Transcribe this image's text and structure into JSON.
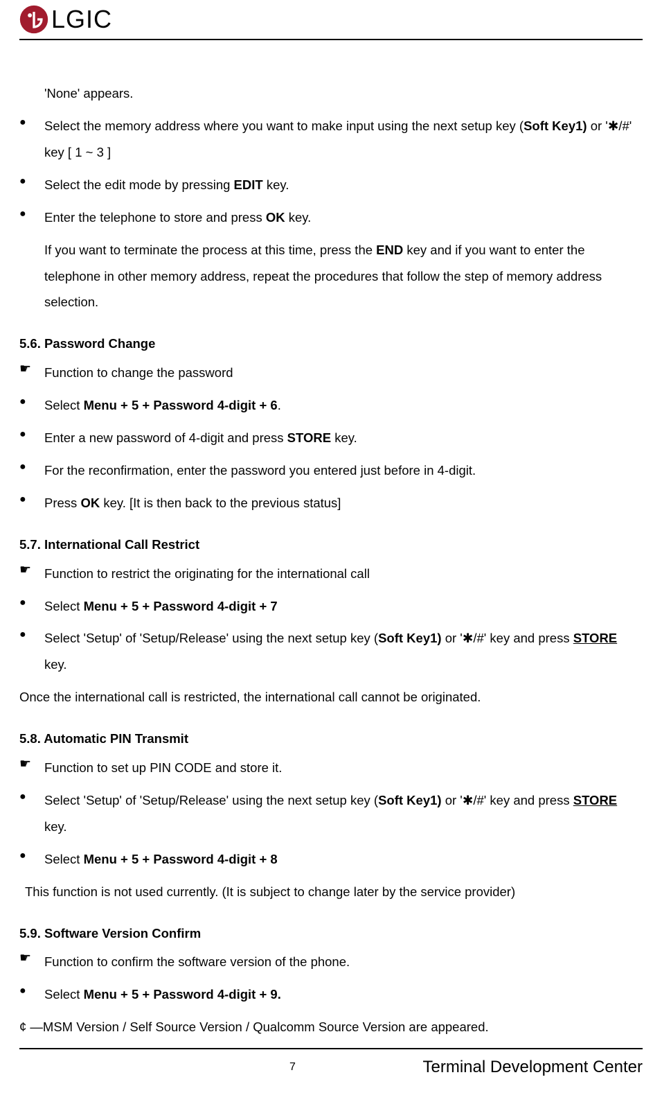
{
  "brand": {
    "text": "LGIC",
    "logo_ring_color": "#a11c2e",
    "logo_face_color": "#ffffff"
  },
  "top_continuation": "'None' appears.",
  "top_bullets": [
    {
      "html": "Select the memory address where you want to make input using the next setup key (<b>Soft Key1)</b> or '✱/#' key [ 1 ~ 3 ]"
    },
    {
      "html": "Select the edit mode by pressing <b>EDIT</b> key."
    },
    {
      "html": "Enter the telephone to store and press <b>OK</b> key."
    }
  ],
  "top_trailing": "If you want to terminate the process at this time, press the <b>END</b> key and if you want to enter the telephone in other memory address, repeat the procedures that follow the step of memory address selection.",
  "s56": {
    "heading": "5.6. Password Change",
    "pointer": "Function to change the password",
    "bullets": [
      {
        "html": "Select <b>Menu + 5 + Password 4-digit + 6</b>."
      },
      {
        "html": "Enter a new password of 4-digit and press <b>STORE</b> key."
      },
      {
        "html": "For the reconfirmation, enter the password you entered just before in 4-digit."
      },
      {
        "html": "Press <b>OK</b> key. [It is then back to the previous status]"
      }
    ]
  },
  "s57": {
    "heading": "5.7. International Call Restrict",
    "pointer": "Function to restrict the originating for the international call",
    "bullets": [
      {
        "html": "Select <b>Menu + 5 + Password 4-digit + 7</b>"
      },
      {
        "html": "Select 'Setup' of 'Setup/Release' using the next setup key (<b>Soft Key1)</b> or '✱/#' key and press <b><span class=\"u\">STORE</span></b> key."
      }
    ],
    "note": "Once the international call is restricted, the international call cannot be originated."
  },
  "s58": {
    "heading": "5.8. Automatic PIN Transmit",
    "pointer": "Function to set up PIN CODE and store it.",
    "bullets": [
      {
        "html": "Select 'Setup' of 'Setup/Release' using the next setup key (<b>Soft Key1)</b> or '✱/#' key and press <b><span class=\"u\">STORE</span></b> key."
      },
      {
        "html": "Select <b>Menu + 5 + Password 4-digit + 8</b>"
      }
    ],
    "note": "This function is not used currently. (It is subject to change later by the service provider)"
  },
  "s59": {
    "heading": "5.9.   Software Version Confirm",
    "pointer": "Function to confirm the software version of the phone.",
    "bullets": [
      {
        "html": "Select <b>Menu + 5 + Password 4-digit + 9.</b>"
      }
    ],
    "note": "¢ ―MSM Version / Self Source Version / Qualcomm Source Version are appeared."
  },
  "footer": {
    "page": "7",
    "right": "Terminal Development Center"
  },
  "glyphs": {
    "bullet": "●",
    "pointer": "☛"
  }
}
